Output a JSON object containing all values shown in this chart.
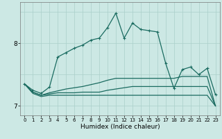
{
  "xlabel": "Humidex (Indice chaleur)",
  "x_ticks": [
    0,
    1,
    2,
    3,
    4,
    5,
    6,
    7,
    8,
    9,
    10,
    11,
    12,
    13,
    14,
    15,
    16,
    17,
    18,
    19,
    20,
    21,
    22,
    23
  ],
  "ylim": [
    6.85,
    8.65
  ],
  "yticks": [
    7,
    8
  ],
  "bg_color": "#cce8e4",
  "grid_color": "#aacfca",
  "line_color": "#1a6b60",
  "main_line": [
    7.35,
    7.25,
    7.2,
    7.3,
    7.78,
    7.85,
    7.92,
    7.97,
    8.05,
    8.08,
    8.25,
    8.48,
    8.08,
    8.32,
    8.22,
    8.2,
    8.18,
    7.68,
    7.28,
    7.58,
    7.62,
    7.5,
    7.6,
    7.18
  ],
  "line2": [
    7.35,
    7.2,
    7.15,
    7.17,
    7.17,
    7.17,
    7.17,
    7.17,
    7.17,
    7.17,
    7.17,
    7.17,
    7.17,
    7.17,
    7.17,
    7.17,
    7.17,
    7.17,
    7.17,
    7.17,
    7.17,
    7.17,
    7.17,
    7.0
  ],
  "line3": [
    7.35,
    7.22,
    7.17,
    7.19,
    7.21,
    7.21,
    7.21,
    7.22,
    7.22,
    7.22,
    7.25,
    7.27,
    7.29,
    7.31,
    7.31,
    7.31,
    7.31,
    7.31,
    7.31,
    7.31,
    7.31,
    7.31,
    7.31,
    7.0
  ],
  "line4": [
    7.35,
    7.22,
    7.17,
    7.21,
    7.24,
    7.27,
    7.29,
    7.31,
    7.34,
    7.37,
    7.41,
    7.44,
    7.44,
    7.44,
    7.44,
    7.44,
    7.44,
    7.44,
    7.44,
    7.47,
    7.47,
    7.47,
    7.47,
    7.0
  ],
  "figsize": [
    3.2,
    2.0
  ],
  "dpi": 100,
  "xlabel_fontsize": 6.5,
  "xtick_fontsize": 5.0,
  "ytick_fontsize": 6.5,
  "linewidth": 0.9,
  "marker_size": 3.5,
  "marker_lw": 0.8
}
